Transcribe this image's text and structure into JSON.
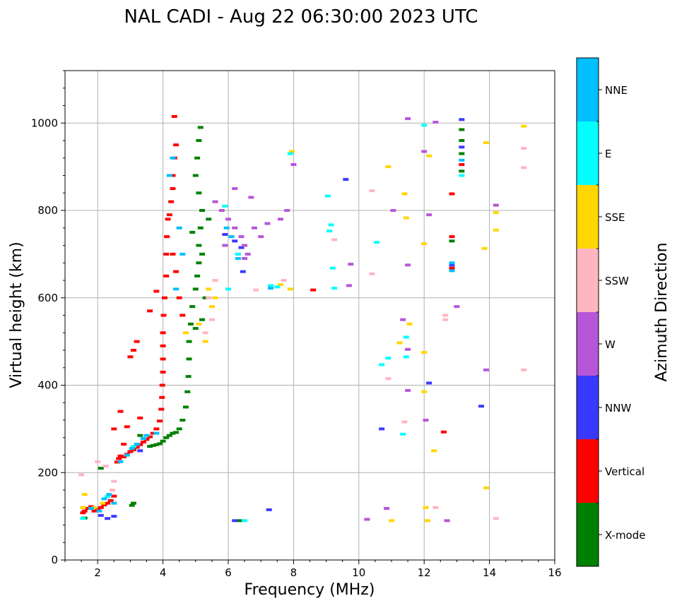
{
  "chart_data": {
    "type": "scatter",
    "title": "NAL CADI - Aug 22 06:30:00 2023 UTC",
    "xlabel": "Frequency (MHz)",
    "ylabel": "Virtual height (km)",
    "xlim": [
      1,
      16
    ],
    "ylim": [
      0,
      1120
    ],
    "xticks": [
      2,
      4,
      6,
      8,
      10,
      12,
      14,
      16
    ],
    "yticks": [
      0,
      200,
      400,
      600,
      800,
      1000
    ],
    "grid": true,
    "colorbar": {
      "label": "Azimuth Direction",
      "categories": [
        {
          "name": "X-mode",
          "color": "#008000"
        },
        {
          "name": "Vertical",
          "color": "#ff0000"
        },
        {
          "name": "NNW",
          "color": "#3a3aff"
        },
        {
          "name": "W",
          "color": "#b557d8"
        },
        {
          "name": "SSW",
          "color": "#ffb6c1"
        },
        {
          "name": "SSE",
          "color": "#ffd700"
        },
        {
          "name": "E",
          "color": "#00ffff"
        },
        {
          "name": "NNE",
          "color": "#00bfff"
        }
      ]
    },
    "series": [
      {
        "name": "Vertical",
        "color": "#ff0000",
        "points": [
          [
            1.55,
            108
          ],
          [
            1.6,
            112
          ],
          [
            1.7,
            118
          ],
          [
            1.8,
            122
          ],
          [
            1.9,
            112
          ],
          [
            2.0,
            116
          ],
          [
            2.1,
            120
          ],
          [
            2.2,
            126
          ],
          [
            2.3,
            130
          ],
          [
            2.4,
            136
          ],
          [
            2.5,
            146
          ],
          [
            2.6,
            224
          ],
          [
            2.65,
            232
          ],
          [
            2.7,
            238
          ],
          [
            2.8,
            236
          ],
          [
            2.9,
            242
          ],
          [
            3.0,
            248
          ],
          [
            3.1,
            252
          ],
          [
            3.2,
            258
          ],
          [
            3.3,
            264
          ],
          [
            3.4,
            270
          ],
          [
            3.5,
            276
          ],
          [
            3.6,
            282
          ],
          [
            3.7,
            290
          ],
          [
            3.8,
            300
          ],
          [
            3.9,
            318
          ],
          [
            3.95,
            345
          ],
          [
            3.97,
            372
          ],
          [
            3.98,
            400
          ],
          [
            4.0,
            430
          ],
          [
            4.0,
            460
          ],
          [
            4.0,
            490
          ],
          [
            4.0,
            520
          ],
          [
            4.02,
            560
          ],
          [
            4.05,
            600
          ],
          [
            4.1,
            650
          ],
          [
            4.1,
            700
          ],
          [
            4.12,
            740
          ],
          [
            4.15,
            780
          ],
          [
            4.2,
            790
          ],
          [
            4.25,
            820
          ],
          [
            4.3,
            850
          ],
          [
            4.3,
            880
          ],
          [
            4.35,
            920
          ],
          [
            4.4,
            950
          ],
          [
            4.35,
            1015
          ],
          [
            3.2,
            500
          ],
          [
            3.1,
            480
          ],
          [
            3.0,
            465
          ],
          [
            3.6,
            570
          ],
          [
            3.8,
            615
          ],
          [
            2.9,
            305
          ],
          [
            2.7,
            340
          ],
          [
            2.5,
            300
          ],
          [
            4.5,
            600
          ],
          [
            4.6,
            560
          ],
          [
            4.4,
            660
          ],
          [
            4.3,
            700
          ],
          [
            3.3,
            325
          ],
          [
            2.8,
            265
          ],
          [
            12.85,
            838
          ],
          [
            12.85,
            740
          ],
          [
            12.85,
            668
          ],
          [
            12.6,
            293
          ],
          [
            13.15,
            905
          ],
          [
            8.6,
            618
          ]
        ]
      },
      {
        "name": "X-mode",
        "color": "#008000",
        "points": [
          [
            3.6,
            260
          ],
          [
            3.7,
            262
          ],
          [
            3.8,
            264
          ],
          [
            3.9,
            266
          ],
          [
            4.0,
            272
          ],
          [
            4.1,
            280
          ],
          [
            4.2,
            285
          ],
          [
            4.3,
            290
          ],
          [
            4.4,
            292
          ],
          [
            4.5,
            300
          ],
          [
            4.6,
            320
          ],
          [
            4.7,
            350
          ],
          [
            4.75,
            385
          ],
          [
            4.78,
            420
          ],
          [
            4.8,
            460
          ],
          [
            4.8,
            500
          ],
          [
            4.85,
            540
          ],
          [
            4.9,
            580
          ],
          [
            5.0,
            620
          ],
          [
            5.05,
            650
          ],
          [
            5.1,
            680
          ],
          [
            5.1,
            720
          ],
          [
            5.15,
            760
          ],
          [
            5.2,
            800
          ],
          [
            5.1,
            840
          ],
          [
            5.0,
            880
          ],
          [
            5.05,
            920
          ],
          [
            5.1,
            960
          ],
          [
            5.15,
            990
          ],
          [
            5.2,
            550
          ],
          [
            5.3,
            600
          ],
          [
            5.2,
            700
          ],
          [
            4.9,
            750
          ],
          [
            5.4,
            780
          ],
          [
            5.0,
            530
          ],
          [
            3.1,
            130
          ],
          [
            3.05,
            125
          ],
          [
            13.15,
            890
          ],
          [
            13.15,
            930
          ],
          [
            13.15,
            960
          ],
          [
            13.15,
            985
          ],
          [
            12.85,
            730
          ],
          [
            6.35,
            90
          ],
          [
            1.6,
            96
          ],
          [
            2.1,
            210
          ],
          [
            3.3,
            285
          ]
        ]
      },
      {
        "name": "NNW",
        "color": "#3a3aff",
        "points": [
          [
            2.1,
            102
          ],
          [
            2.3,
            95
          ],
          [
            2.5,
            100
          ],
          [
            3.3,
            250
          ],
          [
            5.9,
            745
          ],
          [
            6.2,
            730
          ],
          [
            6.4,
            715
          ],
          [
            6.45,
            660
          ],
          [
            9.6,
            871
          ],
          [
            10.7,
            300
          ],
          [
            12.15,
            405
          ],
          [
            13.15,
            945
          ],
          [
            13.15,
            1008
          ],
          [
            12.85,
            675
          ],
          [
            13.75,
            352
          ],
          [
            7.25,
            115
          ],
          [
            6.2,
            90
          ]
        ]
      },
      {
        "name": "W",
        "color": "#b557d8",
        "points": [
          [
            5.6,
            820
          ],
          [
            5.8,
            800
          ],
          [
            6.0,
            780
          ],
          [
            6.2,
            760
          ],
          [
            6.4,
            740
          ],
          [
            6.5,
            720
          ],
          [
            6.6,
            700
          ],
          [
            6.8,
            760
          ],
          [
            7.0,
            740
          ],
          [
            7.2,
            770
          ],
          [
            7.6,
            780
          ],
          [
            7.8,
            800
          ],
          [
            6.2,
            850
          ],
          [
            6.7,
            830
          ],
          [
            5.9,
            720
          ],
          [
            6.3,
            700
          ],
          [
            6.5,
            690
          ],
          [
            8.0,
            905
          ],
          [
            9.75,
            677
          ],
          [
            10.85,
            118
          ],
          [
            11.05,
            800
          ],
          [
            11.5,
            1010
          ],
          [
            11.5,
            482
          ],
          [
            11.5,
            388
          ],
          [
            11.5,
            675
          ],
          [
            12.05,
            320
          ],
          [
            12.15,
            790
          ],
          [
            12.35,
            1002
          ],
          [
            12.7,
            90
          ],
          [
            13.0,
            580
          ],
          [
            12.0,
            935
          ],
          [
            14.2,
            812
          ],
          [
            13.9,
            435
          ],
          [
            10.25,
            93
          ],
          [
            9.7,
            628
          ],
          [
            11.35,
            550
          ]
        ]
      },
      {
        "name": "SSW",
        "color": "#ffb6c1",
        "points": [
          [
            2.45,
            160
          ],
          [
            2.5,
            180
          ],
          [
            2.25,
            215
          ],
          [
            2.0,
            225
          ],
          [
            1.5,
            195
          ],
          [
            5.5,
            550
          ],
          [
            5.3,
            520
          ],
          [
            5.4,
            600
          ],
          [
            5.5,
            580
          ],
          [
            5.6,
            640
          ],
          [
            7.7,
            640
          ],
          [
            10.4,
            845
          ],
          [
            10.4,
            655
          ],
          [
            10.9,
            415
          ],
          [
            11.4,
            316
          ],
          [
            12.65,
            560
          ],
          [
            12.65,
            550
          ],
          [
            12.35,
            120
          ],
          [
            14.2,
            95
          ],
          [
            15.05,
            942
          ],
          [
            15.05,
            898
          ],
          [
            15.05,
            435
          ],
          [
            9.25,
            733
          ],
          [
            6.85,
            618
          ]
        ]
      },
      {
        "name": "SSE",
        "color": "#ffd700",
        "points": [
          [
            1.6,
            150
          ],
          [
            1.55,
            120
          ],
          [
            1.9,
            120
          ],
          [
            2.15,
            130
          ],
          [
            5.4,
            620
          ],
          [
            5.5,
            580
          ],
          [
            5.6,
            600
          ],
          [
            5.3,
            500
          ],
          [
            5.1,
            540
          ],
          [
            4.7,
            520
          ],
          [
            7.6,
            630
          ],
          [
            7.9,
            620
          ],
          [
            11.0,
            90
          ],
          [
            11.25,
            497
          ],
          [
            11.45,
            783
          ],
          [
            11.55,
            540
          ],
          [
            12.0,
            475
          ],
          [
            12.0,
            385
          ],
          [
            12.0,
            724
          ],
          [
            12.05,
            120
          ],
          [
            12.1,
            90
          ],
          [
            12.3,
            250
          ],
          [
            12.15,
            925
          ],
          [
            13.85,
            713
          ],
          [
            13.9,
            955
          ],
          [
            13.9,
            165
          ],
          [
            14.2,
            795
          ],
          [
            14.2,
            755
          ],
          [
            15.05,
            993
          ],
          [
            10.9,
            900
          ],
          [
            11.4,
            838
          ],
          [
            7.95,
            935
          ]
        ]
      },
      {
        "name": "E",
        "color": "#00ffff",
        "points": [
          [
            1.55,
            95
          ],
          [
            2.3,
            145
          ],
          [
            3.1,
            260
          ],
          [
            7.3,
            628
          ],
          [
            7.5,
            625
          ],
          [
            7.9,
            930
          ],
          [
            9.05,
            833
          ],
          [
            9.15,
            767
          ],
          [
            9.1,
            753
          ],
          [
            9.2,
            668
          ],
          [
            9.25,
            622
          ],
          [
            10.55,
            727
          ],
          [
            10.7,
            447
          ],
          [
            10.9,
            462
          ],
          [
            11.35,
            288
          ],
          [
            11.45,
            510
          ],
          [
            11.45,
            465
          ],
          [
            12.0,
            995
          ],
          [
            6.5,
            90
          ],
          [
            6.3,
            700
          ],
          [
            5.9,
            810
          ],
          [
            6.0,
            620
          ],
          [
            13.15,
            880
          ]
        ]
      },
      {
        "name": "NNE",
        "color": "#00bfff",
        "points": [
          [
            1.8,
            118
          ],
          [
            2.05,
            112
          ],
          [
            2.2,
            140
          ],
          [
            2.35,
            150
          ],
          [
            2.7,
            225
          ],
          [
            2.9,
            240
          ],
          [
            3.05,
            255
          ],
          [
            3.2,
            265
          ],
          [
            3.4,
            278
          ],
          [
            3.5,
            285
          ],
          [
            3.8,
            290
          ],
          [
            4.2,
            880
          ],
          [
            4.3,
            920
          ],
          [
            4.5,
            760
          ],
          [
            4.4,
            620
          ],
          [
            4.6,
            700
          ],
          [
            5.95,
            760
          ],
          [
            6.1,
            740
          ],
          [
            6.3,
            690
          ],
          [
            7.3,
            622
          ],
          [
            12.85,
            680
          ],
          [
            12.85,
            662
          ],
          [
            13.15,
            915
          ],
          [
            2.5,
            130
          ]
        ]
      }
    ]
  }
}
